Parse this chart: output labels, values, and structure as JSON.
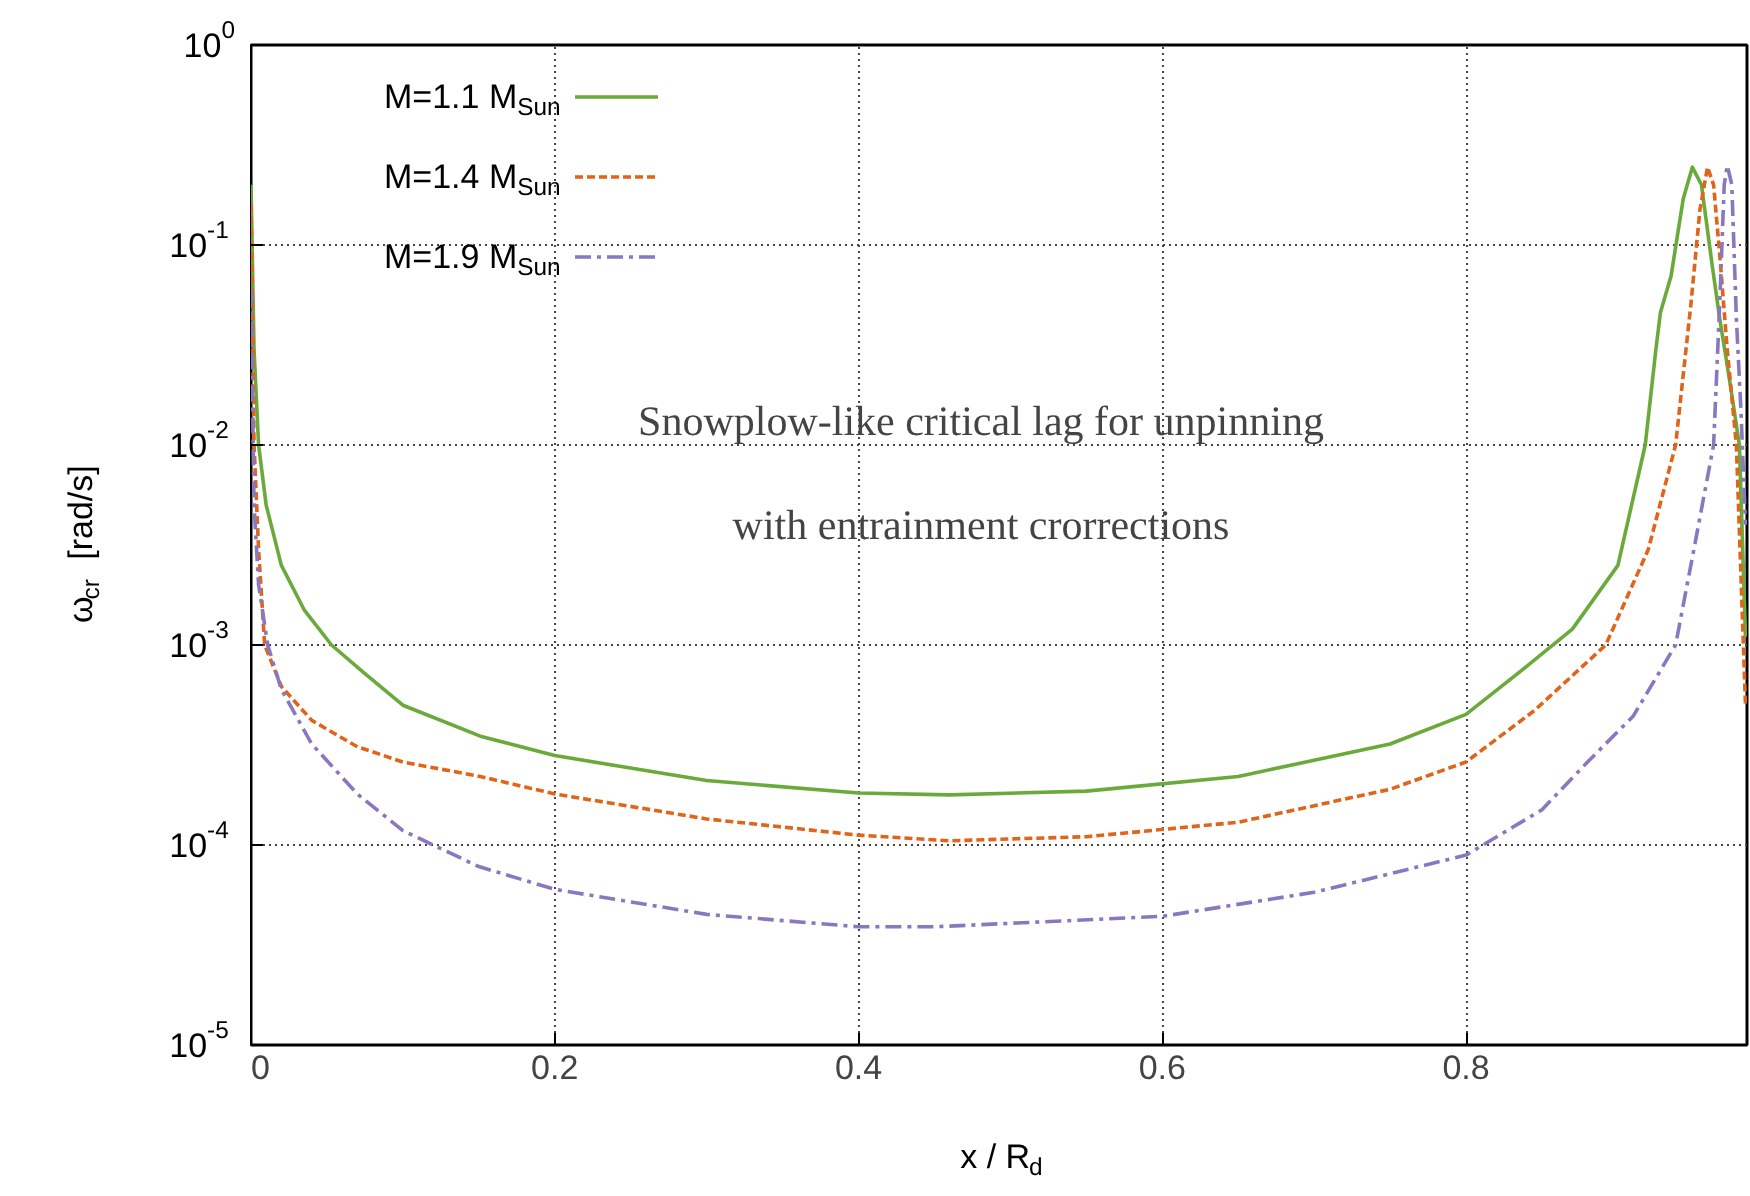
{
  "chart_data": {
    "type": "line",
    "xlabel": "x / R$_{d}$",
    "ylabel": "ω$_{cr}$  [rad/s]",
    "annotations": [
      "Snowplow-like critical lag for unpinning",
      "with entrainment crorrections"
    ],
    "xlim": [
      0,
      0.985
    ],
    "xticks": [
      0,
      0.2,
      0.4,
      0.6,
      0.8
    ],
    "ylim": [
      1e-05,
      1
    ],
    "yticks": [
      {
        "value": 1e-05,
        "label": "10$^{-5}$"
      },
      {
        "value": 0.0001,
        "label": "10$^{-4}$"
      },
      {
        "value": 0.001,
        "label": "10$^{-3}$"
      },
      {
        "value": 0.01,
        "label": "10$^{-2}$"
      },
      {
        "value": 0.1,
        "label": "10$^{-1}$"
      },
      {
        "value": 1,
        "label": "10$^{0}$"
      }
    ],
    "log": "y",
    "grid": true,
    "legend": "top left",
    "marker": "none",
    "series": [
      {
        "name": "M=1.1 M$_{Sun}$",
        "color": "#6aaa3a",
        "line_style": "solid",
        "x": [
          0,
          0.002,
          0.005,
          0.01,
          0.02,
          0.035,
          0.053,
          0.075,
          0.1,
          0.151,
          0.2,
          0.3,
          0.4,
          0.46,
          0.55,
          0.65,
          0.75,
          0.8,
          0.836,
          0.87,
          0.9,
          0.918,
          0.925,
          0.928,
          0.935,
          0.943,
          0.949,
          0.955,
          0.962,
          0.967,
          0.974,
          0.98,
          0.984
        ],
        "values": [
          0.2,
          0.03,
          0.01,
          0.005,
          0.0025,
          0.0015,
          0.001,
          0.00072,
          0.0005,
          0.00035,
          0.00028,
          0.00021,
          0.000182,
          0.000178,
          0.000186,
          0.00022,
          0.00032,
          0.00045,
          0.00074,
          0.0012,
          0.0025,
          0.01,
          0.03,
          0.046,
          0.07,
          0.17,
          0.245,
          0.2,
          0.08,
          0.043,
          0.02,
          0.01,
          0.0011
        ]
      },
      {
        "name": "M=1.4 M$_{Sun}$",
        "color": "#e0641a",
        "line_style": "dashed",
        "x": [
          0,
          0.002,
          0.005,
          0.009,
          0.02,
          0.04,
          0.07,
          0.1,
          0.151,
          0.2,
          0.3,
          0.4,
          0.46,
          0.55,
          0.65,
          0.75,
          0.8,
          0.845,
          0.892,
          0.92,
          0.938,
          0.948,
          0.954,
          0.959,
          0.963,
          0.967,
          0.972,
          0.978,
          0.984
        ],
        "values": [
          0.16,
          0.01,
          0.003,
          0.001,
          0.00062,
          0.00042,
          0.00031,
          0.00026,
          0.00022,
          0.00018,
          0.000135,
          0.000112,
          0.000105,
          0.00011,
          0.00013,
          0.00019,
          0.00026,
          0.00047,
          0.001,
          0.003,
          0.01,
          0.05,
          0.15,
          0.245,
          0.2,
          0.09,
          0.03,
          0.01,
          0.0005
        ]
      },
      {
        "name": "M=1.9 M$_{Sun}$",
        "color": "#8878c0",
        "line_style": "dashdot",
        "x": [
          0,
          0.002,
          0.005,
          0.011,
          0.02,
          0.04,
          0.07,
          0.1,
          0.15,
          0.2,
          0.3,
          0.4,
          0.45,
          0.6,
          0.7,
          0.8,
          0.85,
          0.88,
          0.91,
          0.938,
          0.95,
          0.963,
          0.967,
          0.97,
          0.972,
          0.975,
          0.978,
          0.981,
          0.984
        ],
        "values": [
          0.06,
          0.005,
          0.002,
          0.001,
          0.0006,
          0.00032,
          0.00018,
          0.000118,
          7.8e-05,
          6e-05,
          4.5e-05,
          3.9e-05,
          3.9e-05,
          4.4e-05,
          5.8e-05,
          8.9e-05,
          0.00015,
          0.00026,
          0.00044,
          0.001,
          0.003,
          0.01,
          0.05,
          0.2,
          0.25,
          0.2,
          0.043,
          0.015,
          0.004
        ]
      }
    ]
  }
}
